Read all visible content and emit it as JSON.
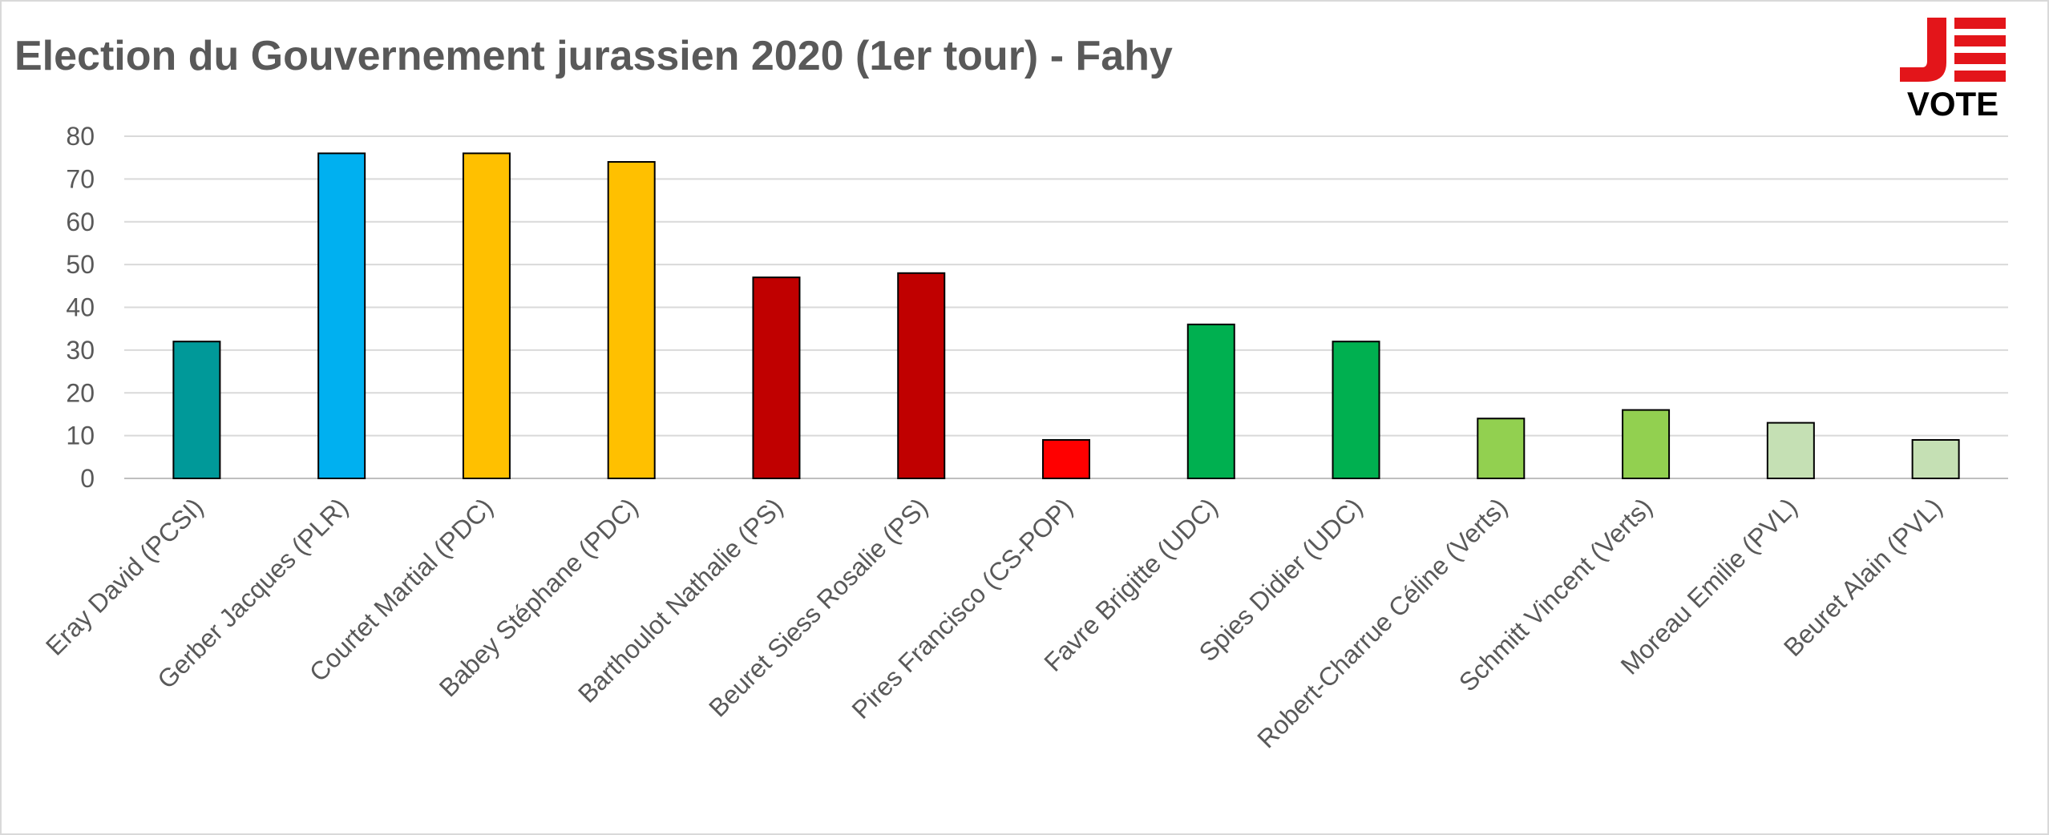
{
  "chart_data": {
    "type": "bar",
    "title": "Election du Gouvernement jurassien 2020 (1er tour) - Fahy",
    "xlabel": "",
    "ylabel": "",
    "ylim": [
      0,
      80
    ],
    "yticks": [
      0,
      10,
      20,
      30,
      40,
      50,
      60,
      70,
      80
    ],
    "grid": true,
    "legend": "none",
    "categories": [
      "Eray David (PCSI)",
      "Gerber Jacques (PLR)",
      "Courtet Martial (PDC)",
      "Babey Stéphane (PDC)",
      "Barthoulot Nathalie (PS)",
      "Beuret Siess Rosalie (PS)",
      "Pires Francisco (CS-POP)",
      "Favre Brigitte (UDC)",
      "Spies Didier (UDC)",
      "Robert-Charrue Céline (Verts)",
      "Schmitt Vincent (Verts)",
      "Moreau Emilie (PVL)",
      "Beuret Alain (PVL)"
    ],
    "values": [
      32,
      76,
      76,
      74,
      47,
      48,
      9,
      36,
      32,
      14,
      16,
      13,
      9
    ],
    "colors": [
      "#009999",
      "#00b0f0",
      "#ffc000",
      "#ffc000",
      "#c00000",
      "#c00000",
      "#ff0000",
      "#00b050",
      "#00b050",
      "#92d050",
      "#92d050",
      "#c5e0b4",
      "#c5e0b4"
    ]
  },
  "logo": {
    "text": "VOTE",
    "letter": "J",
    "color": "#e3151a"
  }
}
